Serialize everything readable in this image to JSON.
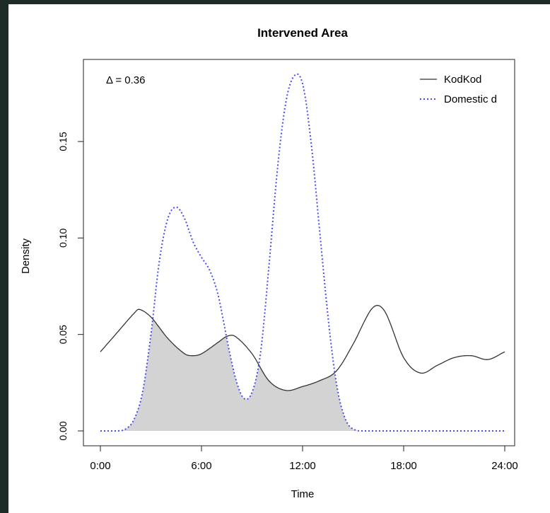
{
  "chart_data": {
    "type": "line",
    "title": "Intervened Area",
    "xlabel": "Time",
    "ylabel": "Density",
    "xlim": [
      0,
      24
    ],
    "ylim": [
      0,
      0.185
    ],
    "x_ticks": [
      0,
      6,
      12,
      18,
      24
    ],
    "x_tick_labels": [
      "0:00",
      "6:00",
      "12:00",
      "18:00",
      "24:00"
    ],
    "y_ticks": [
      0.0,
      0.05,
      0.1,
      0.15
    ],
    "y_tick_labels": [
      "0.00",
      "0.05",
      "0.10",
      "0.15"
    ],
    "annotation": "Δ = 0.36",
    "legend_position": "top-right",
    "grid": false,
    "overlap_fill_color": "#d3d3d3",
    "series": [
      {
        "name": "KodKod",
        "color": "#333333",
        "line_style": "solid",
        "x": [
          0,
          1,
          2,
          2.3,
          3,
          4,
          5,
          5.5,
          6,
          7,
          7.5,
          8,
          9,
          10,
          11,
          12,
          13,
          14,
          15,
          16,
          16.5,
          17,
          18,
          19,
          20,
          21,
          22,
          23,
          24
        ],
        "y": [
          0.041,
          0.051,
          0.061,
          0.063,
          0.059,
          0.048,
          0.04,
          0.039,
          0.04,
          0.046,
          0.049,
          0.049,
          0.04,
          0.026,
          0.021,
          0.023,
          0.026,
          0.031,
          0.045,
          0.062,
          0.065,
          0.06,
          0.038,
          0.03,
          0.034,
          0.038,
          0.039,
          0.037,
          0.041
        ]
      },
      {
        "name": "Domestic d",
        "color": "#4b4bf0",
        "line_style": "dotted",
        "x": [
          0,
          1,
          1.5,
          2,
          2.5,
          3,
          3.5,
          4,
          4.5,
          5,
          5.5,
          6,
          6.5,
          7,
          7.5,
          8,
          8.5,
          9,
          9.5,
          10,
          10.5,
          11,
          11.5,
          12,
          12.5,
          13,
          13.5,
          14,
          14.5,
          15,
          16,
          18,
          20,
          24
        ],
        "y": [
          0.0,
          0.0,
          0.001,
          0.006,
          0.02,
          0.05,
          0.088,
          0.11,
          0.116,
          0.11,
          0.098,
          0.09,
          0.083,
          0.07,
          0.048,
          0.028,
          0.017,
          0.02,
          0.04,
          0.085,
          0.135,
          0.17,
          0.184,
          0.18,
          0.15,
          0.105,
          0.06,
          0.025,
          0.007,
          0.001,
          0.0,
          0.0,
          0.0,
          0.0
        ]
      }
    ]
  }
}
